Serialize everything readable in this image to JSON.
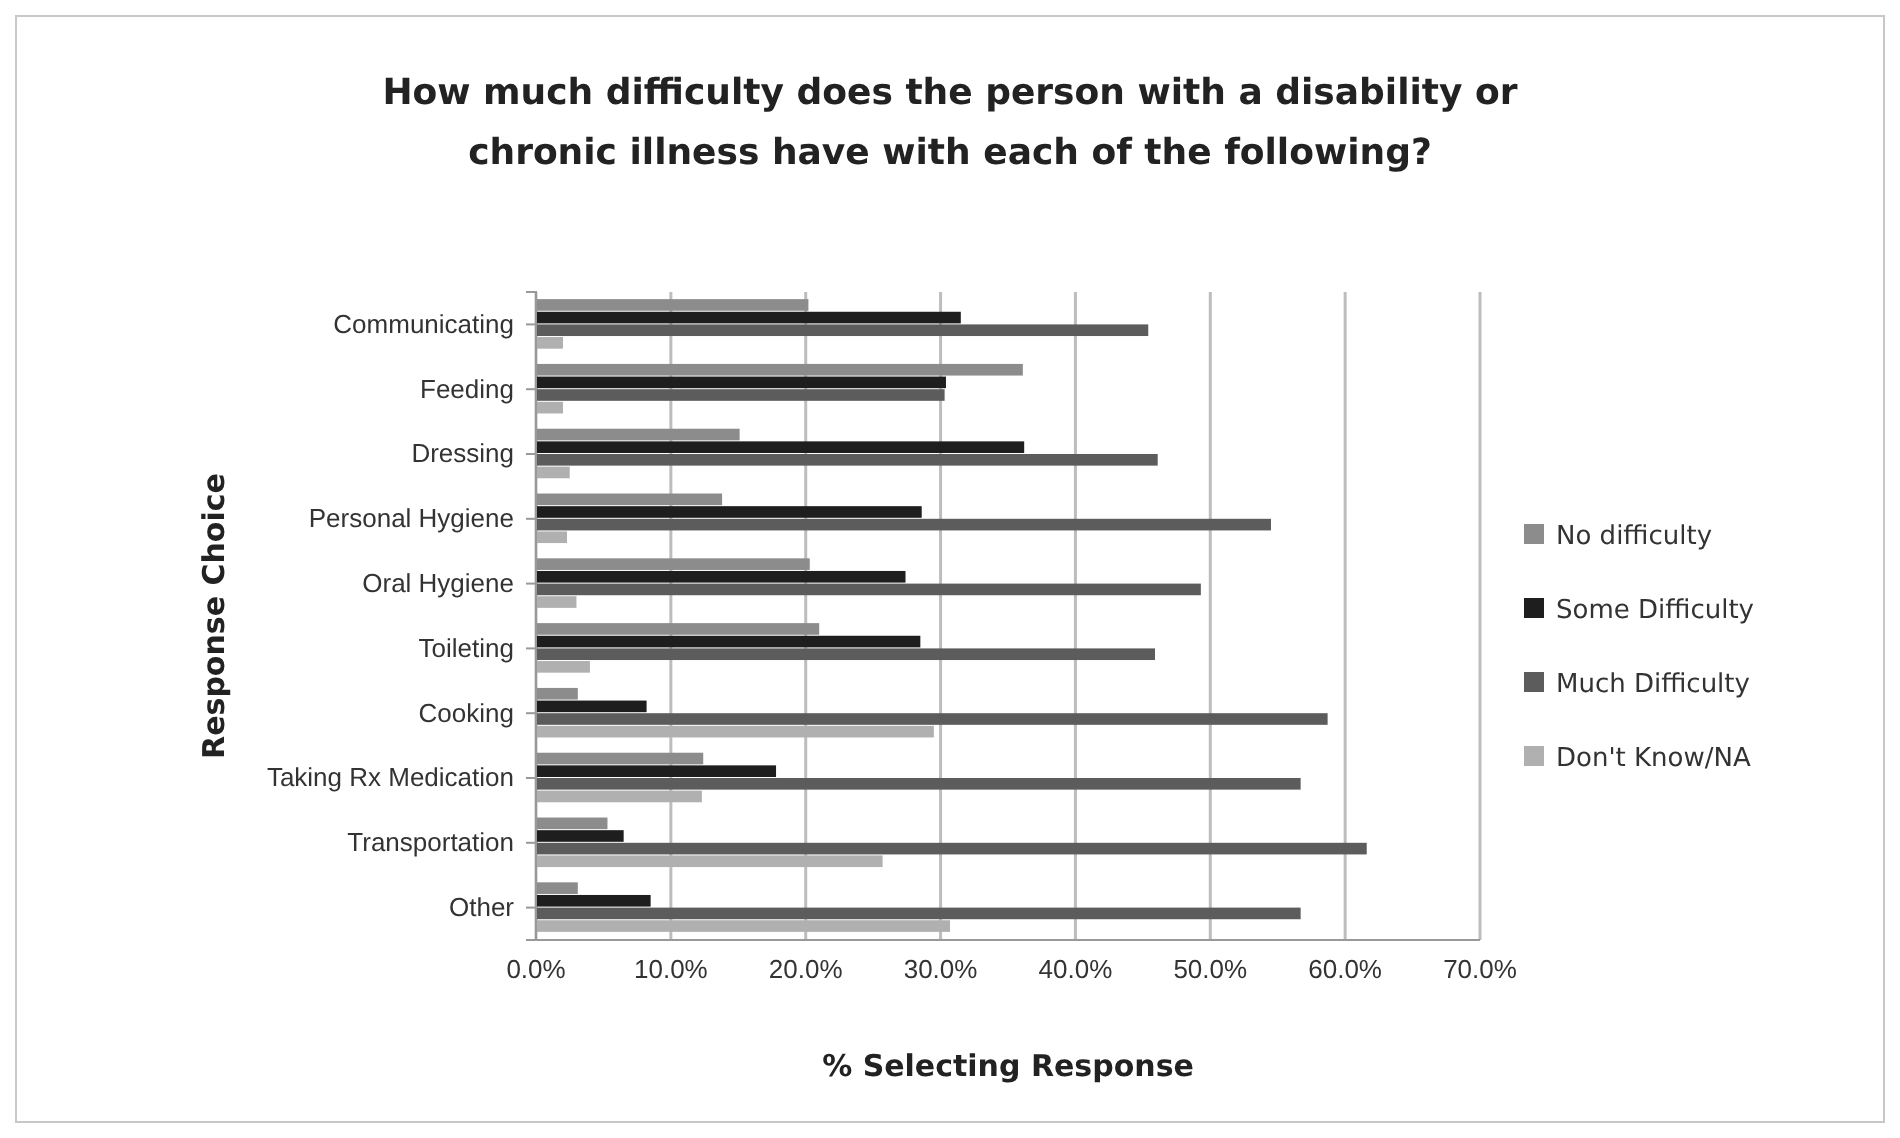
{
  "chart_data": {
    "type": "bar",
    "orientation": "horizontal",
    "title": "How much difficulty does the person with a disability or chronic illness have with each of the following?",
    "xlabel": "% Selecting Response",
    "ylabel": "Response Choice",
    "categories": [
      "Communicating",
      "Feeding",
      "Dressing",
      "Personal Hygiene",
      "Oral Hygiene",
      "Toileting",
      "Cooking",
      "Taking Rx Medication",
      "Transportation",
      "Other"
    ],
    "series": [
      {
        "name": "No difficulty",
        "color": "#8c8c8c",
        "values": [
          20.2,
          36.1,
          15.1,
          13.8,
          20.3,
          21.0,
          3.1,
          12.4,
          5.3,
          3.1
        ]
      },
      {
        "name": "Some Difficulty",
        "color": "#1e1e1e",
        "values": [
          31.5,
          30.4,
          36.2,
          28.6,
          27.4,
          28.5,
          8.2,
          17.8,
          6.5,
          8.5
        ]
      },
      {
        "name": "Much Difficulty",
        "color": "#5c5c5c",
        "values": [
          45.4,
          30.3,
          46.1,
          54.5,
          49.3,
          45.9,
          58.7,
          56.7,
          61.6,
          56.7
        ]
      },
      {
        "name": "Don't Know/NA",
        "color": "#b0b0b0",
        "values": [
          2.0,
          2.0,
          2.5,
          2.3,
          3.0,
          4.0,
          29.5,
          12.3,
          25.7,
          30.7
        ]
      }
    ],
    "xlim": [
      0,
      70
    ],
    "xticks": [
      {
        "value": 0,
        "label": "0.0%"
      },
      {
        "value": 10,
        "label": "10.0%"
      },
      {
        "value": 20,
        "label": "20.0%"
      },
      {
        "value": 30,
        "label": "30.0%"
      },
      {
        "value": 40,
        "label": "40.0%"
      },
      {
        "value": 50,
        "label": "50.0%"
      },
      {
        "value": 60,
        "label": "60.0%"
      },
      {
        "value": 70,
        "label": "70.0%"
      }
    ],
    "grid": "x",
    "legend": "right"
  }
}
